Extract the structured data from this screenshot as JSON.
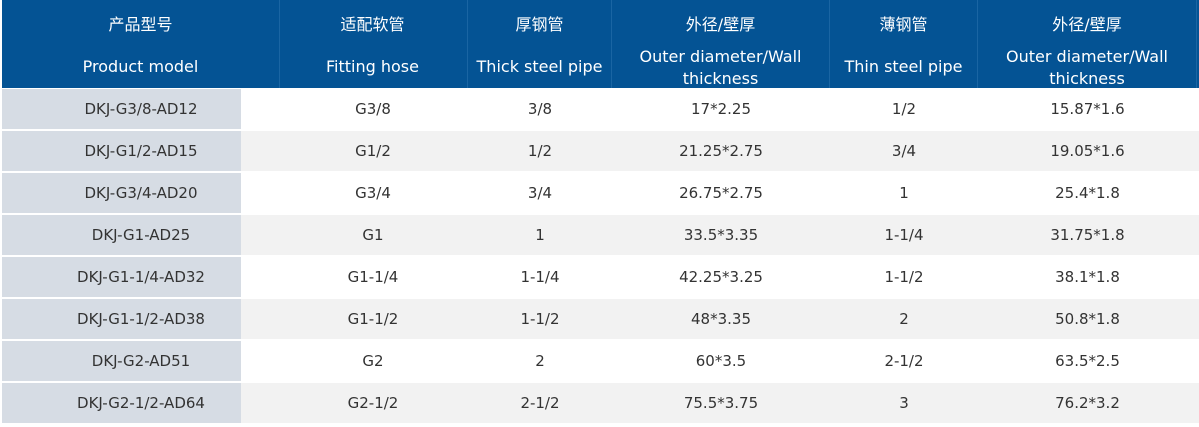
{
  "header": [
    {
      "zh": "产品型号",
      "en": "Product model"
    },
    {
      "zh": "适配软管",
      "en": "Fitting hose"
    },
    {
      "zh": "厚钢管",
      "en": "Thick steel pipe"
    },
    {
      "zh": "外径/壁厚",
      "en": "Outer diameter/Wall thickness"
    },
    {
      "zh": "薄钢管",
      "en": "Thin steel pipe"
    },
    {
      "zh": "外径/壁厚",
      "en": "Outer diameter/Wall thickness"
    }
  ],
  "rows": [
    [
      "DKJ-G3/8-AD12",
      "G3/8",
      "3/8",
      "17*2.25",
      "1/2",
      "15.87*1.6"
    ],
    [
      "DKJ-G1/2-AD15",
      "G1/2",
      "1/2",
      "21.25*2.75",
      "3/4",
      "19.05*1.6"
    ],
    [
      "DKJ-G3/4-AD20",
      "G3/4",
      "3/4",
      "26.75*2.75",
      "1",
      "25.4*1.8"
    ],
    [
      "DKJ-G1-AD25",
      "G1",
      "1",
      "33.5*3.35",
      "1-1/4",
      "31.75*1.8"
    ],
    [
      "DKJ-G1-1/4-AD32",
      "G1-1/4",
      "1-1/4",
      "42.25*3.25",
      "1-1/2",
      "38.1*1.8"
    ],
    [
      "DKJ-G1-1/2-AD38",
      "G1-1/2",
      "1-1/2",
      "48*3.35",
      "2",
      "50.8*1.8"
    ],
    [
      "DKJ-G2-AD51",
      "G2",
      "2",
      "60*3.5",
      "2-1/2",
      "63.5*2.5"
    ],
    [
      "DKJ-G2-1/2-AD64",
      "G2-1/2",
      "2-1/2",
      "75.5*3.75",
      "3",
      "76.2*3.2"
    ]
  ],
  "colors": {
    "header_bg": "#045394",
    "first_col_bg": "#d6dce4",
    "alt_row_bg": "#f2f2f2"
  }
}
